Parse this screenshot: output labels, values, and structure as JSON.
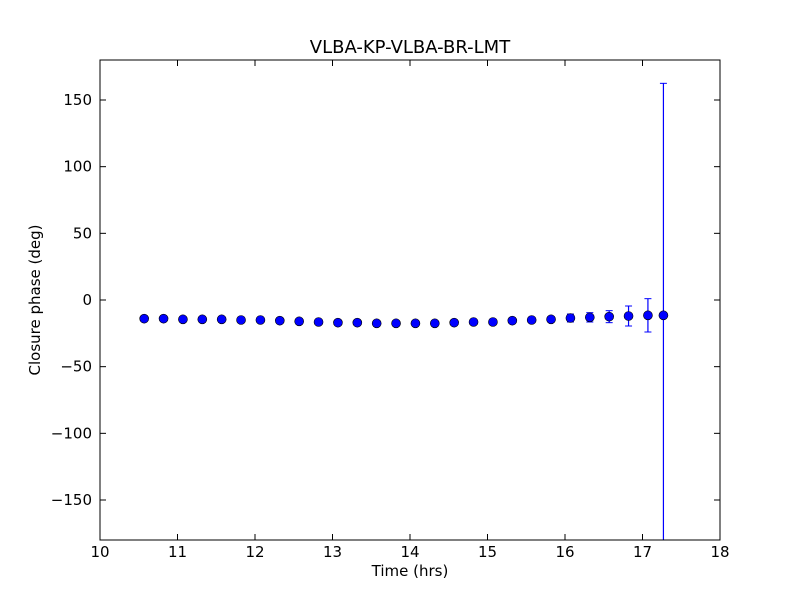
{
  "chart_data": {
    "type": "scatter",
    "title": "VLBA-KP-VLBA-BR-LMT",
    "xlabel": "Time (hrs)",
    "ylabel": "Closure phase (deg)",
    "xlim": [
      10,
      18
    ],
    "ylim": [
      -180,
      180
    ],
    "xticks": [
      10,
      11,
      12,
      13,
      14,
      15,
      16,
      17,
      18
    ],
    "xtick_labels": [
      "10",
      "11",
      "12",
      "13",
      "14",
      "15",
      "16",
      "17",
      "18"
    ],
    "yticks": [
      150,
      100,
      50,
      0,
      -50,
      -100,
      -150
    ],
    "ytick_labels": [
      "150",
      "100",
      "50",
      "0",
      "−50",
      "−100",
      "−150"
    ],
    "grid": false,
    "marker_color": "#0000ff",
    "series": [
      {
        "x": [
          10.57,
          10.82,
          11.07,
          11.32,
          11.57,
          11.82,
          12.07,
          12.32,
          12.57,
          12.82,
          13.07,
          13.32,
          13.57,
          13.82,
          14.07,
          14.32,
          14.57,
          14.82,
          15.07,
          15.32,
          15.57,
          15.82,
          16.07,
          16.32,
          16.57,
          16.82,
          17.07,
          17.27
        ],
        "y": [
          -14,
          -14,
          -14.5,
          -14.5,
          -14.5,
          -15,
          -15,
          -15.5,
          -16,
          -16.5,
          -17,
          -17,
          -17.5,
          -17.5,
          -17.5,
          -17.5,
          -17,
          -16.5,
          -16.5,
          -15.5,
          -15,
          -14.5,
          -13.5,
          -13,
          -12.5,
          -12,
          -11.5,
          -11.5
        ],
        "yerr": [
          1.5,
          1.5,
          1.5,
          1.5,
          1.5,
          1.5,
          1.5,
          1.5,
          1.5,
          1.5,
          1.5,
          1.5,
          1.5,
          1.5,
          1.5,
          1.5,
          1.5,
          1.5,
          1.5,
          1.5,
          1.8,
          2,
          3,
          3.5,
          4.5,
          7.5,
          12.5,
          174
        ]
      }
    ]
  }
}
